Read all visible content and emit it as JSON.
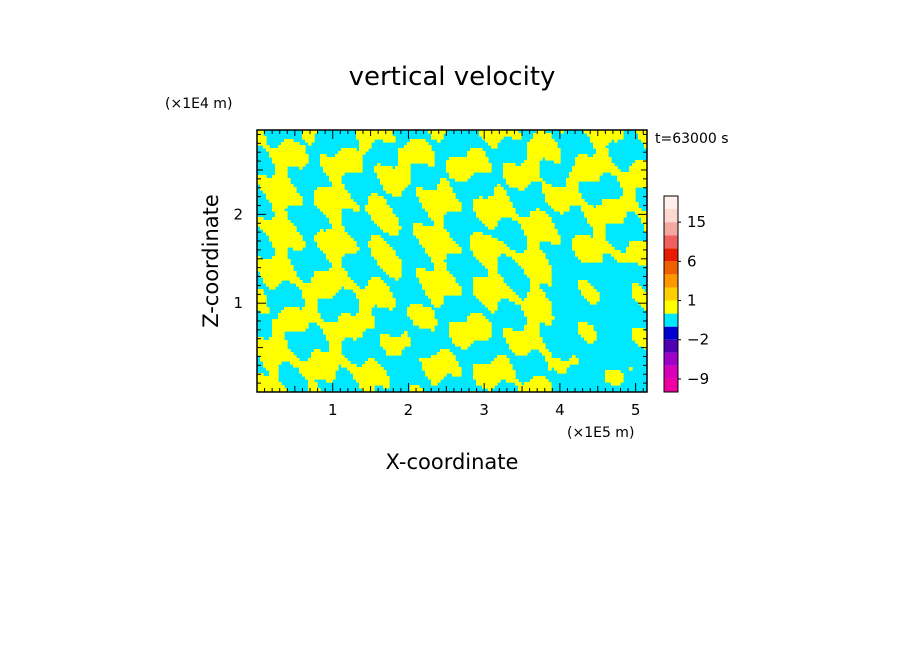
{
  "chart_data": {
    "type": "heatmap",
    "title": "vertical velocity",
    "xlabel": "X-coordinate",
    "ylabel": "Z-coordinate",
    "x_unit": "(×1E5 m)",
    "y_unit": "(×1E4 m)",
    "time_label": "t=63000 s",
    "xlim": [
      0,
      5.15
    ],
    "ylim": [
      0,
      2.95
    ],
    "x_ticks": [
      1,
      2,
      3,
      4,
      5
    ],
    "x_tick_labels": [
      "1",
      "2",
      "3",
      "4",
      "5"
    ],
    "y_ticks": [
      1,
      2
    ],
    "y_tick_labels": [
      "1",
      "2"
    ],
    "grid": false,
    "field_colors": {
      "positive": "#ffff00",
      "negative": "#00e8ff",
      "dark": "#1a1a1a"
    },
    "colorbar": {
      "levels": [
        {
          "from": -12,
          "to": -9,
          "color": "#f000a0"
        },
        {
          "from": -9,
          "to": -6,
          "color": "#d800b8"
        },
        {
          "from": -6,
          "to": -4,
          "color": "#a000c8"
        },
        {
          "from": -4,
          "to": -2,
          "color": "#5000b0"
        },
        {
          "from": -2,
          "to": -1,
          "color": "#0000d0"
        },
        {
          "from": -1,
          "to": 0,
          "color": "#00e8ff"
        },
        {
          "from": 0,
          "to": 1,
          "color": "#ffff00"
        },
        {
          "from": 1,
          "to": 2,
          "color": "#ffd000"
        },
        {
          "from": 2,
          "to": 4,
          "color": "#ff9800"
        },
        {
          "from": 4,
          "to": 6,
          "color": "#f06000"
        },
        {
          "from": 6,
          "to": 9,
          "color": "#e81c00"
        },
        {
          "from": 9,
          "to": 12,
          "color": "#f06060"
        },
        {
          "from": 12,
          "to": 15,
          "color": "#f4a8a0"
        },
        {
          "from": 15,
          "to": 20,
          "color": "#fcd8d0"
        },
        {
          "from": 20,
          "to": 25,
          "color": "#fff0ec"
        }
      ],
      "labels": [
        "15",
        "6",
        "1",
        "−2",
        "−9"
      ],
      "label_values": [
        15,
        6,
        1,
        -2,
        -9
      ]
    }
  }
}
